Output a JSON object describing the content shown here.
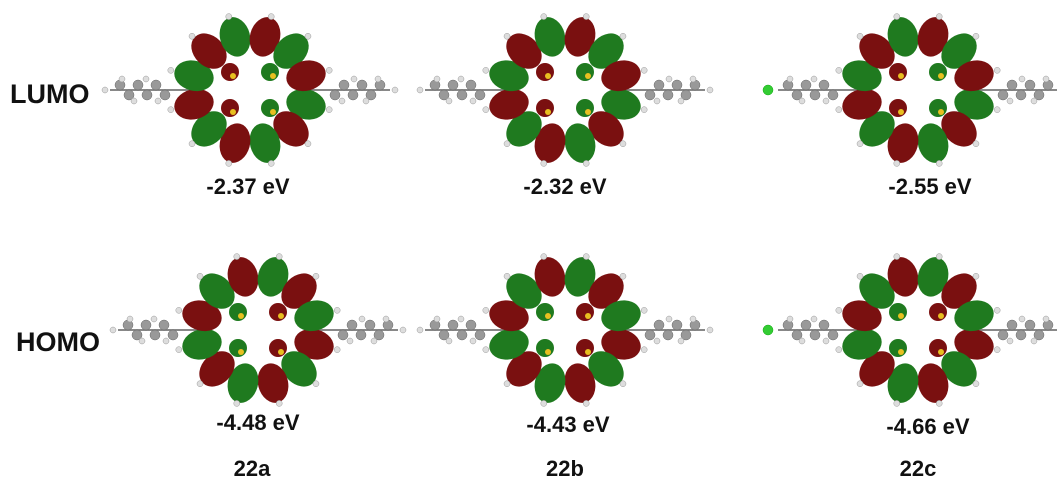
{
  "row_labels": [
    "LUMO",
    "HOMO"
  ],
  "compounds": [
    {
      "label": "22a",
      "lumo": "-2.37 eV",
      "homo": "-4.48 eV"
    },
    {
      "label": "22b",
      "lumo": "-2.32 eV",
      "homo": "-4.43 eV"
    },
    {
      "label": "22c",
      "lumo": "-2.55 eV",
      "homo": "-4.66 eV"
    }
  ]
}
